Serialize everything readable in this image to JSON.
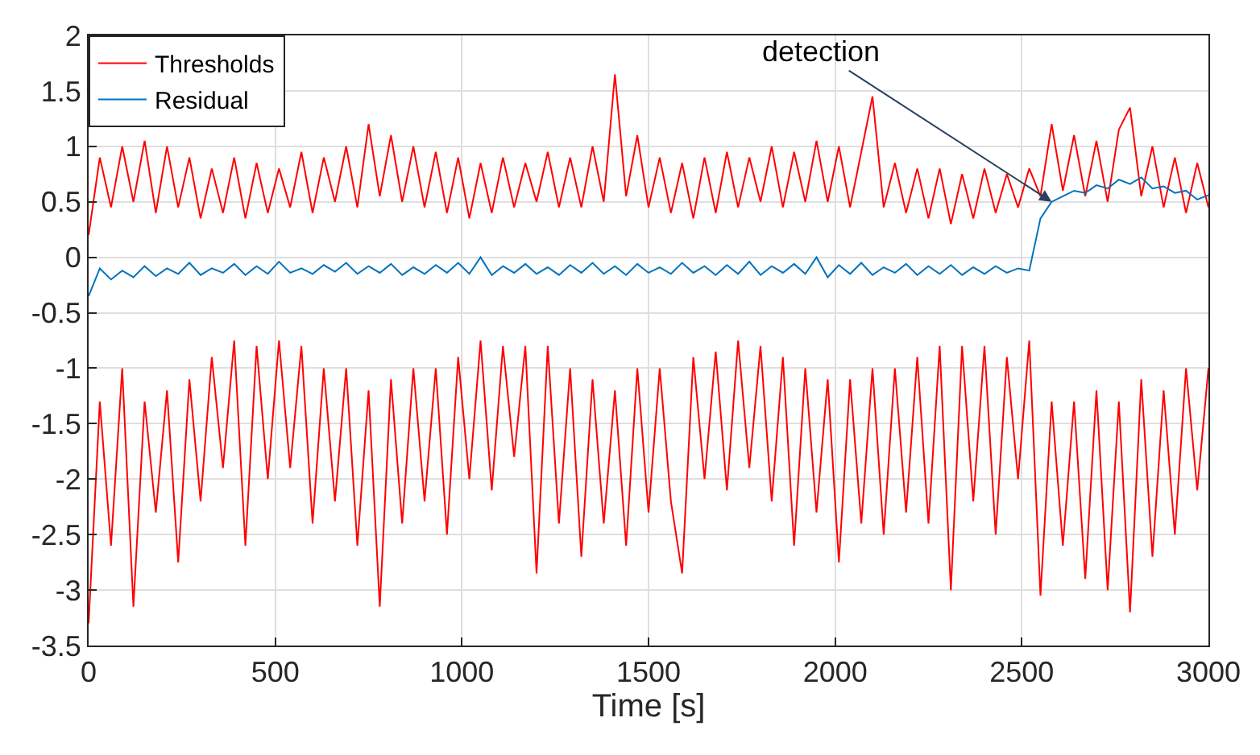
{
  "chart_data": {
    "type": "line",
    "xlabel": "Time [s]",
    "xlim": [
      0,
      3000
    ],
    "xticks": [
      0,
      500,
      1000,
      1500,
      2000,
      2500,
      3000
    ],
    "ylim": [
      -3.5,
      2
    ],
    "yticks": [
      -3.5,
      -3,
      -2.5,
      -2,
      -1.5,
      -1,
      -0.5,
      0,
      0.5,
      1,
      1.5,
      2
    ],
    "grid": true,
    "legend": "top left",
    "line_style": "solid",
    "marker": "none",
    "x": [
      0,
      30,
      60,
      90,
      120,
      150,
      180,
      210,
      240,
      270,
      300,
      330,
      360,
      390,
      420,
      450,
      480,
      510,
      540,
      570,
      600,
      630,
      660,
      690,
      720,
      750,
      780,
      810,
      840,
      870,
      900,
      930,
      960,
      990,
      1020,
      1050,
      1080,
      1110,
      1140,
      1170,
      1200,
      1230,
      1260,
      1290,
      1320,
      1350,
      1380,
      1410,
      1440,
      1470,
      1500,
      1530,
      1560,
      1590,
      1620,
      1650,
      1680,
      1710,
      1740,
      1770,
      1800,
      1830,
      1860,
      1890,
      1920,
      1950,
      1980,
      2010,
      2040,
      2070,
      2100,
      2130,
      2160,
      2190,
      2220,
      2250,
      2280,
      2310,
      2340,
      2370,
      2400,
      2430,
      2460,
      2490,
      2520,
      2550,
      2580,
      2610,
      2640,
      2670,
      2700,
      2730,
      2760,
      2790,
      2820,
      2850,
      2880,
      2910,
      2940,
      2970,
      3000
    ],
    "annotations": [
      {
        "text": "detection",
        "x": 2580,
        "y": 0.5
      }
    ],
    "series": [
      {
        "name": "Thresholds",
        "color": "#ff0000",
        "values": [
          0.2,
          0.9,
          0.45,
          1.0,
          0.5,
          1.05,
          0.4,
          1.0,
          0.45,
          0.9,
          0.35,
          0.8,
          0.4,
          0.9,
          0.35,
          0.85,
          0.4,
          0.8,
          0.45,
          0.95,
          0.4,
          0.9,
          0.5,
          1.0,
          0.45,
          1.2,
          0.55,
          1.1,
          0.5,
          1.0,
          0.45,
          0.95,
          0.4,
          0.9,
          0.35,
          0.85,
          0.4,
          0.9,
          0.45,
          0.85,
          0.5,
          0.95,
          0.45,
          0.9,
          0.45,
          1.0,
          0.5,
          1.65,
          0.55,
          1.1,
          0.45,
          0.9,
          0.4,
          0.85,
          0.35,
          0.9,
          0.4,
          0.95,
          0.45,
          0.9,
          0.5,
          1.0,
          0.45,
          0.95,
          0.5,
          1.05,
          0.5,
          1.0,
          0.45,
          0.95,
          1.45,
          0.45,
          0.85,
          0.4,
          0.8,
          0.35,
          0.8,
          0.3,
          0.75,
          0.35,
          0.8,
          0.4,
          0.75,
          0.45,
          0.8,
          0.55,
          1.2,
          0.6,
          1.1,
          0.55,
          1.05,
          0.5,
          1.15,
          1.35,
          0.55,
          1.0,
          0.45,
          0.9,
          0.4,
          0.85,
          0.45
        ]
      },
      {
        "color": "#ff0000",
        "values": [
          -3.3,
          -1.3,
          -2.6,
          -1.0,
          -3.15,
          -1.3,
          -2.3,
          -1.2,
          -2.75,
          -1.1,
          -2.2,
          -0.9,
          -1.9,
          -0.75,
          -2.6,
          -0.8,
          -2.0,
          -0.75,
          -1.9,
          -0.8,
          -2.4,
          -1.0,
          -2.2,
          -1.0,
          -2.6,
          -1.2,
          -3.15,
          -1.1,
          -2.4,
          -1.0,
          -2.2,
          -1.0,
          -2.5,
          -0.9,
          -2.0,
          -0.75,
          -2.1,
          -0.8,
          -1.8,
          -0.8,
          -2.85,
          -0.8,
          -2.4,
          -1.0,
          -2.7,
          -1.1,
          -2.4,
          -1.2,
          -2.6,
          -1.0,
          -2.3,
          -1.0,
          -2.2,
          -2.85,
          -0.9,
          -2.0,
          -0.85,
          -2.1,
          -0.75,
          -1.9,
          -0.8,
          -2.2,
          -0.9,
          -2.6,
          -1.0,
          -2.3,
          -1.1,
          -2.75,
          -1.1,
          -2.4,
          -1.0,
          -2.5,
          -1.0,
          -2.3,
          -0.9,
          -2.4,
          -0.8,
          -3.0,
          -0.8,
          -2.2,
          -0.8,
          -2.5,
          -0.9,
          -2.0,
          -0.75,
          -3.05,
          -1.3,
          -2.6,
          -1.3,
          -2.9,
          -1.2,
          -3.0,
          -1.3,
          -3.2,
          -1.1,
          -2.7,
          -1.2,
          -2.5,
          -1.0,
          -2.1,
          -1.0
        ]
      },
      {
        "name": "Residual",
        "color": "#0072bd",
        "values": [
          -0.35,
          -0.1,
          -0.2,
          -0.12,
          -0.18,
          -0.08,
          -0.17,
          -0.1,
          -0.15,
          -0.05,
          -0.16,
          -0.1,
          -0.14,
          -0.06,
          -0.16,
          -0.08,
          -0.15,
          -0.04,
          -0.14,
          -0.1,
          -0.15,
          -0.07,
          -0.13,
          -0.05,
          -0.15,
          -0.08,
          -0.14,
          -0.06,
          -0.16,
          -0.09,
          -0.15,
          -0.07,
          -0.14,
          -0.05,
          -0.15,
          0.0,
          -0.16,
          -0.08,
          -0.14,
          -0.06,
          -0.15,
          -0.09,
          -0.16,
          -0.07,
          -0.14,
          -0.05,
          -0.15,
          -0.08,
          -0.16,
          -0.06,
          -0.14,
          -0.09,
          -0.15,
          -0.05,
          -0.14,
          -0.08,
          -0.16,
          -0.07,
          -0.15,
          -0.04,
          -0.16,
          -0.08,
          -0.14,
          -0.06,
          -0.15,
          0.0,
          -0.18,
          -0.07,
          -0.15,
          -0.05,
          -0.16,
          -0.09,
          -0.14,
          -0.06,
          -0.16,
          -0.08,
          -0.15,
          -0.07,
          -0.16,
          -0.09,
          -0.15,
          -0.08,
          -0.14,
          -0.1,
          -0.12,
          0.35,
          0.5,
          0.55,
          0.6,
          0.58,
          0.65,
          0.62,
          0.7,
          0.66,
          0.72,
          0.62,
          0.64,
          0.58,
          0.6,
          0.52,
          0.56
        ]
      }
    ]
  }
}
